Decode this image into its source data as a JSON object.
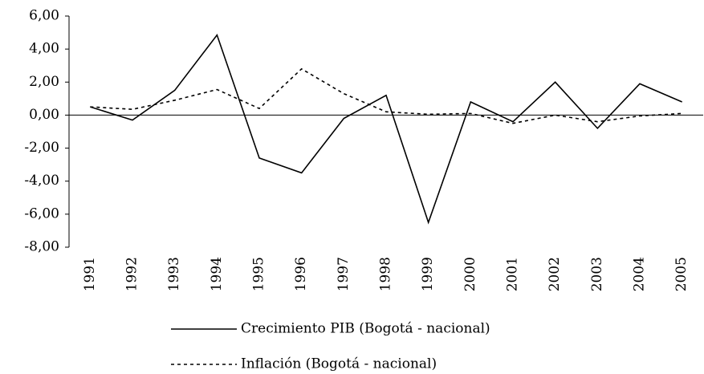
{
  "chart_data": {
    "type": "line",
    "categories": [
      "1991",
      "1992",
      "1993",
      "1994",
      "1995",
      "1996",
      "1997",
      "1998",
      "1999",
      "2000",
      "2001",
      "2002",
      "2003",
      "2004",
      "2005"
    ],
    "series": [
      {
        "name": "Crecimiento PIB  (Bogotá - nacional)",
        "color": "#000000",
        "line_style": "solid",
        "values": [
          0.5,
          -0.3,
          1.5,
          4.85,
          -2.6,
          -3.5,
          -0.2,
          1.2,
          -6.5,
          0.8,
          -0.4,
          2.0,
          -0.8,
          1.9,
          0.8
        ]
      },
      {
        "name": "Inflación (Bogotá - nacional)",
        "color": "#000000",
        "line_style": "dashed",
        "values": [
          0.5,
          0.35,
          0.9,
          1.55,
          0.4,
          2.8,
          1.3,
          0.2,
          0.05,
          0.1,
          -0.5,
          0.0,
          -0.4,
          -0.05,
          0.1
        ]
      }
    ],
    "ylim": [
      -8,
      6
    ],
    "yticks": [
      {
        "value": -8,
        "label": "-8,00"
      },
      {
        "value": -6,
        "label": "-6,00"
      },
      {
        "value": -4,
        "label": "-4,00"
      },
      {
        "value": -2,
        "label": "-2,00"
      },
      {
        "value": 0,
        "label": "0,00"
      },
      {
        "value": 2,
        "label": "2,00"
      },
      {
        "value": 4,
        "label": "4,00"
      },
      {
        "value": 6,
        "label": "6,00"
      }
    ],
    "grid": false
  }
}
